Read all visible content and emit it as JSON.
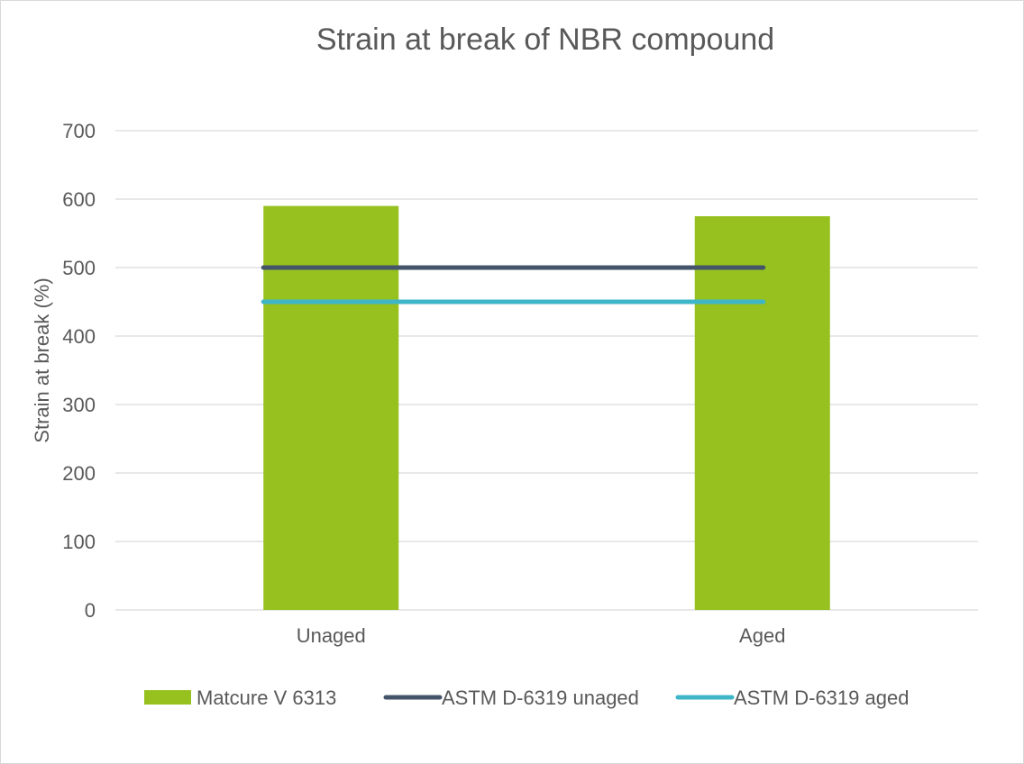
{
  "chart_data": {
    "type": "bar",
    "title": "Strain at break of NBR compound",
    "xlabel": "",
    "ylabel": "Strain at break (%)",
    "ylim": [
      0,
      700
    ],
    "yticks": [
      "0",
      "100",
      "200",
      "300",
      "400",
      "500",
      "600",
      "700"
    ],
    "grid": true,
    "legend_position": "bottom",
    "categories": [
      "Unaged",
      "Aged"
    ],
    "series": [
      {
        "name": "Matcure V 6313",
        "kind": "bar",
        "values": [
          590,
          575
        ],
        "color": "#97c11f"
      },
      {
        "name": "ASTM D-6319 unaged",
        "kind": "line",
        "values": [
          500,
          500
        ],
        "color": "#44546a"
      },
      {
        "name": "ASTM D-6319 aged",
        "kind": "line",
        "values": [
          450,
          450
        ],
        "color": "#3fb6c8"
      }
    ]
  }
}
